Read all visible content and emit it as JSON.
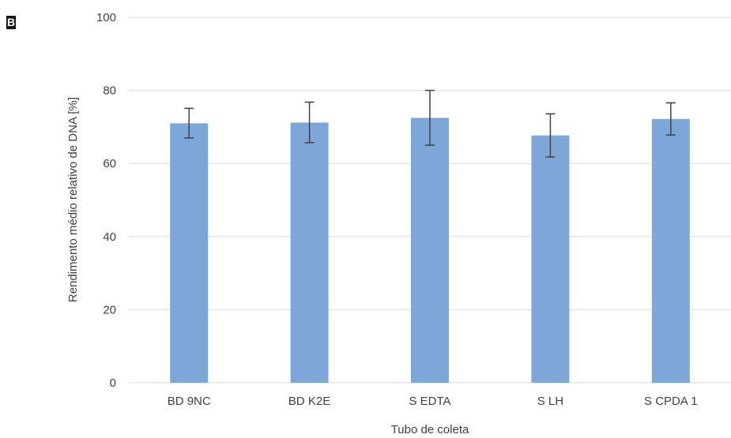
{
  "panel_label": "B",
  "chart_data": {
    "type": "bar",
    "title": "",
    "xlabel": "Tubo de coleta",
    "ylabel": "Rendimento médio relativo de DNA [%]",
    "categories": [
      "BD 9NC",
      "BD K2E",
      "S EDTA",
      "S LH",
      "S CPDA 1"
    ],
    "values": [
      71,
      71.2,
      72.5,
      67.7,
      72.2
    ],
    "error_low": [
      67,
      65.7,
      65,
      61.8,
      67.8
    ],
    "error_high": [
      75.1,
      76.8,
      80,
      73.6,
      76.6
    ],
    "ylim": [
      0,
      100
    ],
    "yticks": [
      0,
      20,
      40,
      60,
      80,
      100
    ],
    "grid": true,
    "colors": {
      "bar": "#7da7d9",
      "grid": "#d9d9d9",
      "error_bar": "#404040",
      "text": "#404040"
    }
  }
}
